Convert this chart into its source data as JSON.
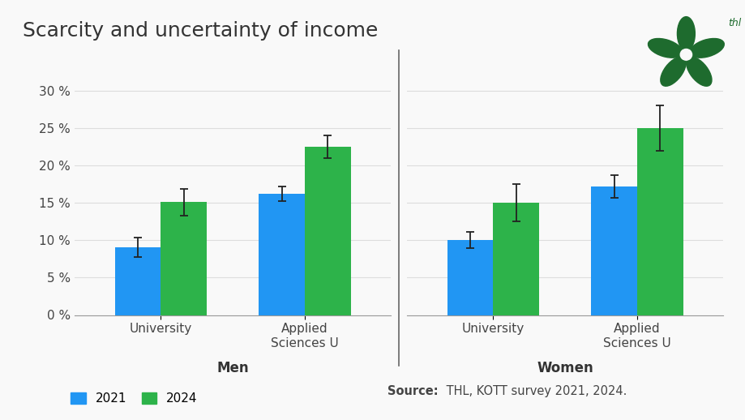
{
  "title": "Scarcity and uncertainty of income",
  "background_color": "#f9f9f9",
  "bar_color_2021": "#2196f3",
  "bar_color_2024": "#2db34a",
  "bar_width": 0.32,
  "groups": [
    "University",
    "Applied\nSciences U"
  ],
  "panels": [
    "Men",
    "Women"
  ],
  "values_2021": [
    [
      9.0,
      16.2
    ],
    [
      10.0,
      17.2
    ]
  ],
  "values_2024": [
    [
      15.1,
      22.5
    ],
    [
      15.0,
      25.0
    ]
  ],
  "errors_2021": [
    [
      1.3,
      1.0
    ],
    [
      1.1,
      1.5
    ]
  ],
  "errors_2024": [
    [
      1.8,
      1.5
    ],
    [
      2.5,
      3.0
    ]
  ],
  "ylim": [
    0,
    32
  ],
  "yticks": [
    0,
    5,
    10,
    15,
    20,
    25,
    30
  ],
  "legend_labels": [
    "2021",
    "2024"
  ],
  "source_bold": "Source:",
  "source_text": "THL, KOTT survey 2021, 2024.",
  "title_fontsize": 18,
  "axis_fontsize": 11,
  "label_fontsize": 11,
  "panel_label_fontsize": 12,
  "divider_color": "#666666",
  "error_color": "#222222",
  "grid_color": "#dddddd",
  "logo_color": "#1e6b2e"
}
